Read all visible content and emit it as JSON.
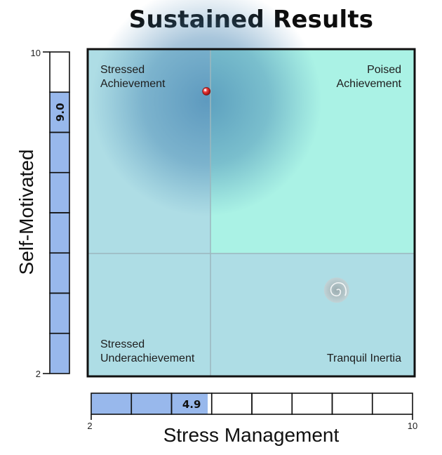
{
  "chart_data": {
    "type": "scatter",
    "title": "Sustained Results",
    "xlabel": "Stress Management",
    "ylabel": "Self-Motivated",
    "xlim": [
      2,
      10
    ],
    "ylim": [
      2,
      10
    ],
    "x_ticks": [
      "2",
      "10"
    ],
    "y_ticks": [
      "2",
      "10"
    ],
    "quadrants": {
      "top_left": [
        "Stressed",
        "Achievement"
      ],
      "top_right": [
        "Poised",
        "Achievement"
      ],
      "bottom_left": [
        "Stressed",
        "Underachievement"
      ],
      "bottom_right": [
        "Tranquil Inertia"
      ]
    },
    "point": {
      "x": 4.9,
      "y": 9.0
    },
    "x_value_label": "4.9",
    "y_value_label": "9.0",
    "target_marker": {
      "x": 8.1,
      "y": 4.1
    },
    "colors": {
      "top_right": "#aaf2e5",
      "other_quadrants": "#aedde5",
      "bar_fill": "#98b8ec",
      "point": "#e53030",
      "glow": "#3f80b0"
    }
  }
}
